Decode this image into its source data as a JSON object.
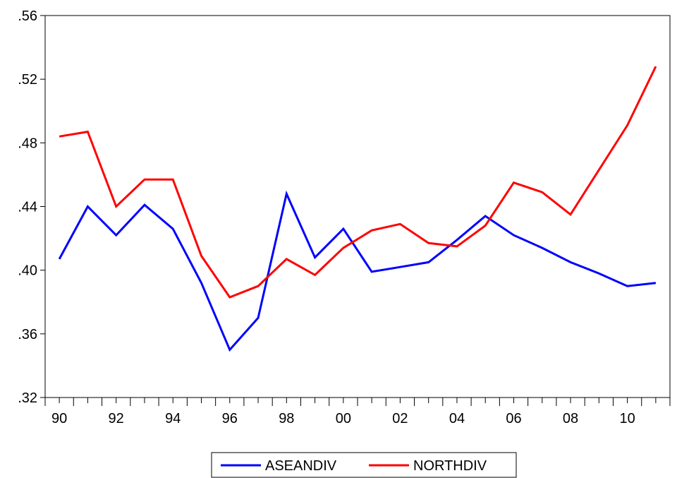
{
  "chart_data": {
    "type": "line",
    "x": [
      1990,
      1991,
      1992,
      1993,
      1994,
      1995,
      1996,
      1997,
      1998,
      1999,
      2000,
      2001,
      2002,
      2003,
      2004,
      2005,
      2006,
      2007,
      2008,
      2009,
      2010,
      2011
    ],
    "xlim": [
      1989.5,
      2011.5
    ],
    "x_ticks": [
      1990,
      1992,
      1994,
      1996,
      1998,
      2000,
      2002,
      2004,
      2006,
      2008,
      2010
    ],
    "x_tick_labels": [
      "90",
      "92",
      "94",
      "96",
      "98",
      "00",
      "02",
      "04",
      "06",
      "08",
      "10"
    ],
    "ylim": [
      0.32,
      0.56
    ],
    "y_ticks": [
      0.32,
      0.36,
      0.4,
      0.44,
      0.48,
      0.52,
      0.56
    ],
    "y_tick_labels": [
      ".32",
      ".36",
      ".40",
      ".44",
      ".48",
      ".52",
      ".56"
    ],
    "grid": false,
    "legend_position": "bottom",
    "series": [
      {
        "name": "ASEANDIV",
        "color": "#0000ff",
        "values": [
          0.407,
          0.44,
          0.422,
          0.441,
          0.426,
          0.392,
          0.35,
          0.37,
          0.448,
          0.408,
          0.426,
          0.399,
          0.402,
          0.405,
          0.419,
          0.434,
          0.422,
          0.414,
          0.405,
          0.398,
          0.39,
          0.392
        ]
      },
      {
        "name": "NORTHDIV",
        "color": "#ff0000",
        "values": [
          0.484,
          0.487,
          0.44,
          0.457,
          0.457,
          0.409,
          0.383,
          0.39,
          0.407,
          0.397,
          0.414,
          0.425,
          0.429,
          0.417,
          0.415,
          0.428,
          0.455,
          0.449,
          0.435,
          0.463,
          0.491,
          0.528
        ]
      }
    ]
  }
}
